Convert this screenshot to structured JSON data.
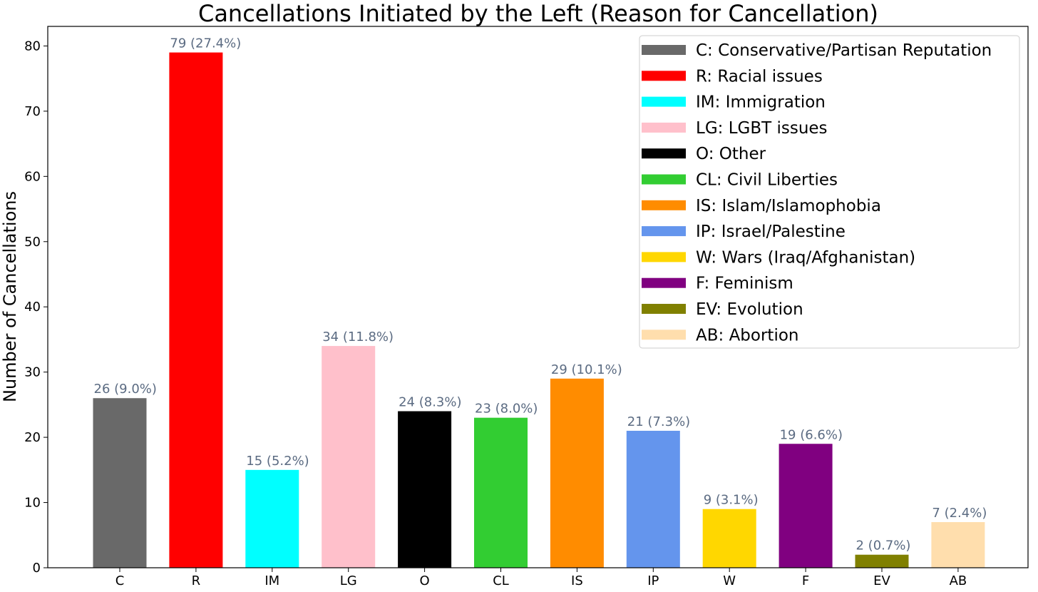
{
  "chart_data": {
    "type": "bar",
    "title": "Cancellations Initiated by the Left (Reason for Cancellation)",
    "xlabel": "",
    "ylabel": "Number of Cancellations",
    "ylim": [
      0,
      83
    ],
    "yticks": [
      "0",
      "10",
      "20",
      "30",
      "40",
      "50",
      "60",
      "70",
      "80"
    ],
    "grid": false,
    "legend_position": "top-right",
    "categories": [
      "C",
      "R",
      "IM",
      "LG",
      "O",
      "CL",
      "IS",
      "IP",
      "W",
      "F",
      "EV",
      "AB"
    ],
    "values": [
      26,
      79,
      15,
      34,
      24,
      23,
      29,
      21,
      9,
      19,
      2,
      7
    ],
    "data_labels": [
      "26 (9.0%)",
      "79 (27.4%)",
      "15 (5.2%)",
      "34 (11.8%)",
      "24 (8.3%)",
      "23 (8.0%)",
      "29 (10.1%)",
      "21 (7.3%)",
      "9 (3.1%)",
      "19 (6.6%)",
      "2 (0.7%)",
      "7 (2.4%)"
    ],
    "colors": [
      "#696969",
      "#ff0000",
      "#00ffff",
      "#ffc0cb",
      "#000000",
      "#32cd32",
      "#ff8c00",
      "#6495ed",
      "#ffd700",
      "#800080",
      "#808000",
      "#ffdead"
    ],
    "legend": [
      "C: Conservative/Partisan Reputation",
      "R: Racial issues",
      "IM: Immigration",
      "LG: LGBT issues",
      "O: Other",
      "CL: Civil Liberties",
      "IS: Islam/Islamophobia",
      "IP: Israel/Palestine",
      "W: Wars (Iraq/Afghanistan)",
      "F: Feminism",
      "EV: Evolution",
      "AB: Abortion"
    ],
    "label_color": "#5b6b82"
  }
}
